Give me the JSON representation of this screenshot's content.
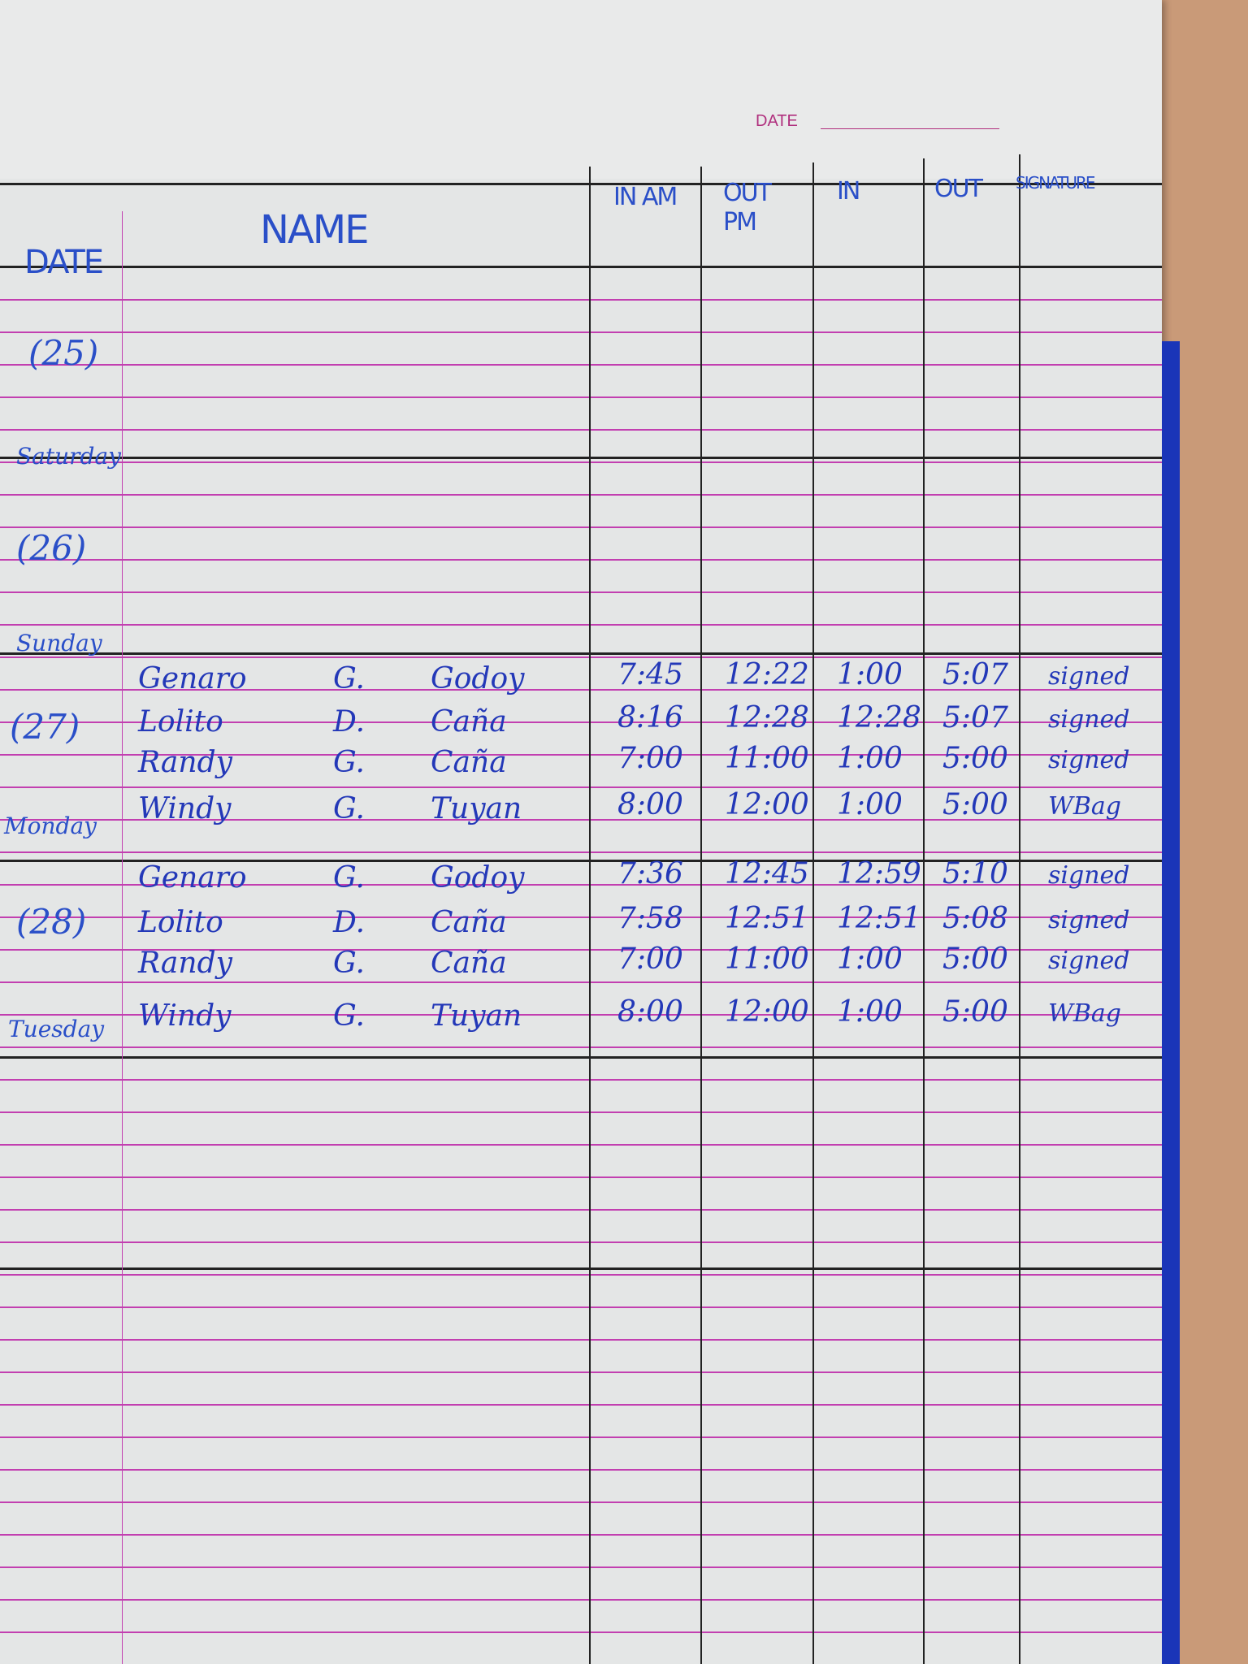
{
  "printed": {
    "date_label": "DATE"
  },
  "header": {
    "date": "DATE",
    "name": "NAME",
    "in_am": "IN AM",
    "out_pm": "OUT PM",
    "in": "IN",
    "out": "OUT",
    "signature": "SIGNATURE"
  },
  "days": [
    {
      "num": "(25)",
      "name": "Saturday"
    },
    {
      "num": "(26)",
      "name": "Sunday"
    },
    {
      "num": "(27)",
      "name": "Monday"
    },
    {
      "num": "(28)",
      "name": "Tuesday"
    }
  ],
  "entries": [
    {
      "first": "Genaro",
      "mi": "G.",
      "last": "Godoy",
      "in_am": "7:45",
      "out_pm": "12:22",
      "in": "1:00",
      "out": "5:07",
      "sig": "signed"
    },
    {
      "first": "Lolito",
      "mi": "D.",
      "last": "Caña",
      "in_am": "8:16",
      "out_pm": "12:28",
      "in": "12:28",
      "out": "5:07",
      "sig": "signed"
    },
    {
      "first": "Randy",
      "mi": "G.",
      "last": "Caña",
      "in_am": "7:00",
      "out_pm": "11:00",
      "in": "1:00",
      "out": "5:00",
      "sig": "signed"
    },
    {
      "first": "Windy",
      "mi": "G.",
      "last": "Tuyan",
      "in_am": "8:00",
      "out_pm": "12:00",
      "in": "1:00",
      "out": "5:00",
      "sig": "WBag"
    },
    {
      "first": "Genaro",
      "mi": "G.",
      "last": "Godoy",
      "in_am": "7:36",
      "out_pm": "12:45",
      "in": "12:59",
      "out": "5:10",
      "sig": "signed"
    },
    {
      "first": "Lolito",
      "mi": "D.",
      "last": "Caña",
      "in_am": "7:58",
      "out_pm": "12:51",
      "in": "12:51",
      "out": "5:08",
      "sig": "signed"
    },
    {
      "first": "Randy",
      "mi": "G.",
      "last": "Caña",
      "in_am": "7:00",
      "out_pm": "11:00",
      "in": "1:00",
      "out": "5:00",
      "sig": "signed"
    },
    {
      "first": "Windy",
      "mi": "G.",
      "last": "Tuyan",
      "in_am": "8:00",
      "out_pm": "12:00",
      "in": "1:00",
      "out": "5:00",
      "sig": "WBag"
    }
  ],
  "colors": {
    "ink": "#2338b8",
    "rule": "#c23fb0",
    "paper": "#e4e6e6"
  }
}
